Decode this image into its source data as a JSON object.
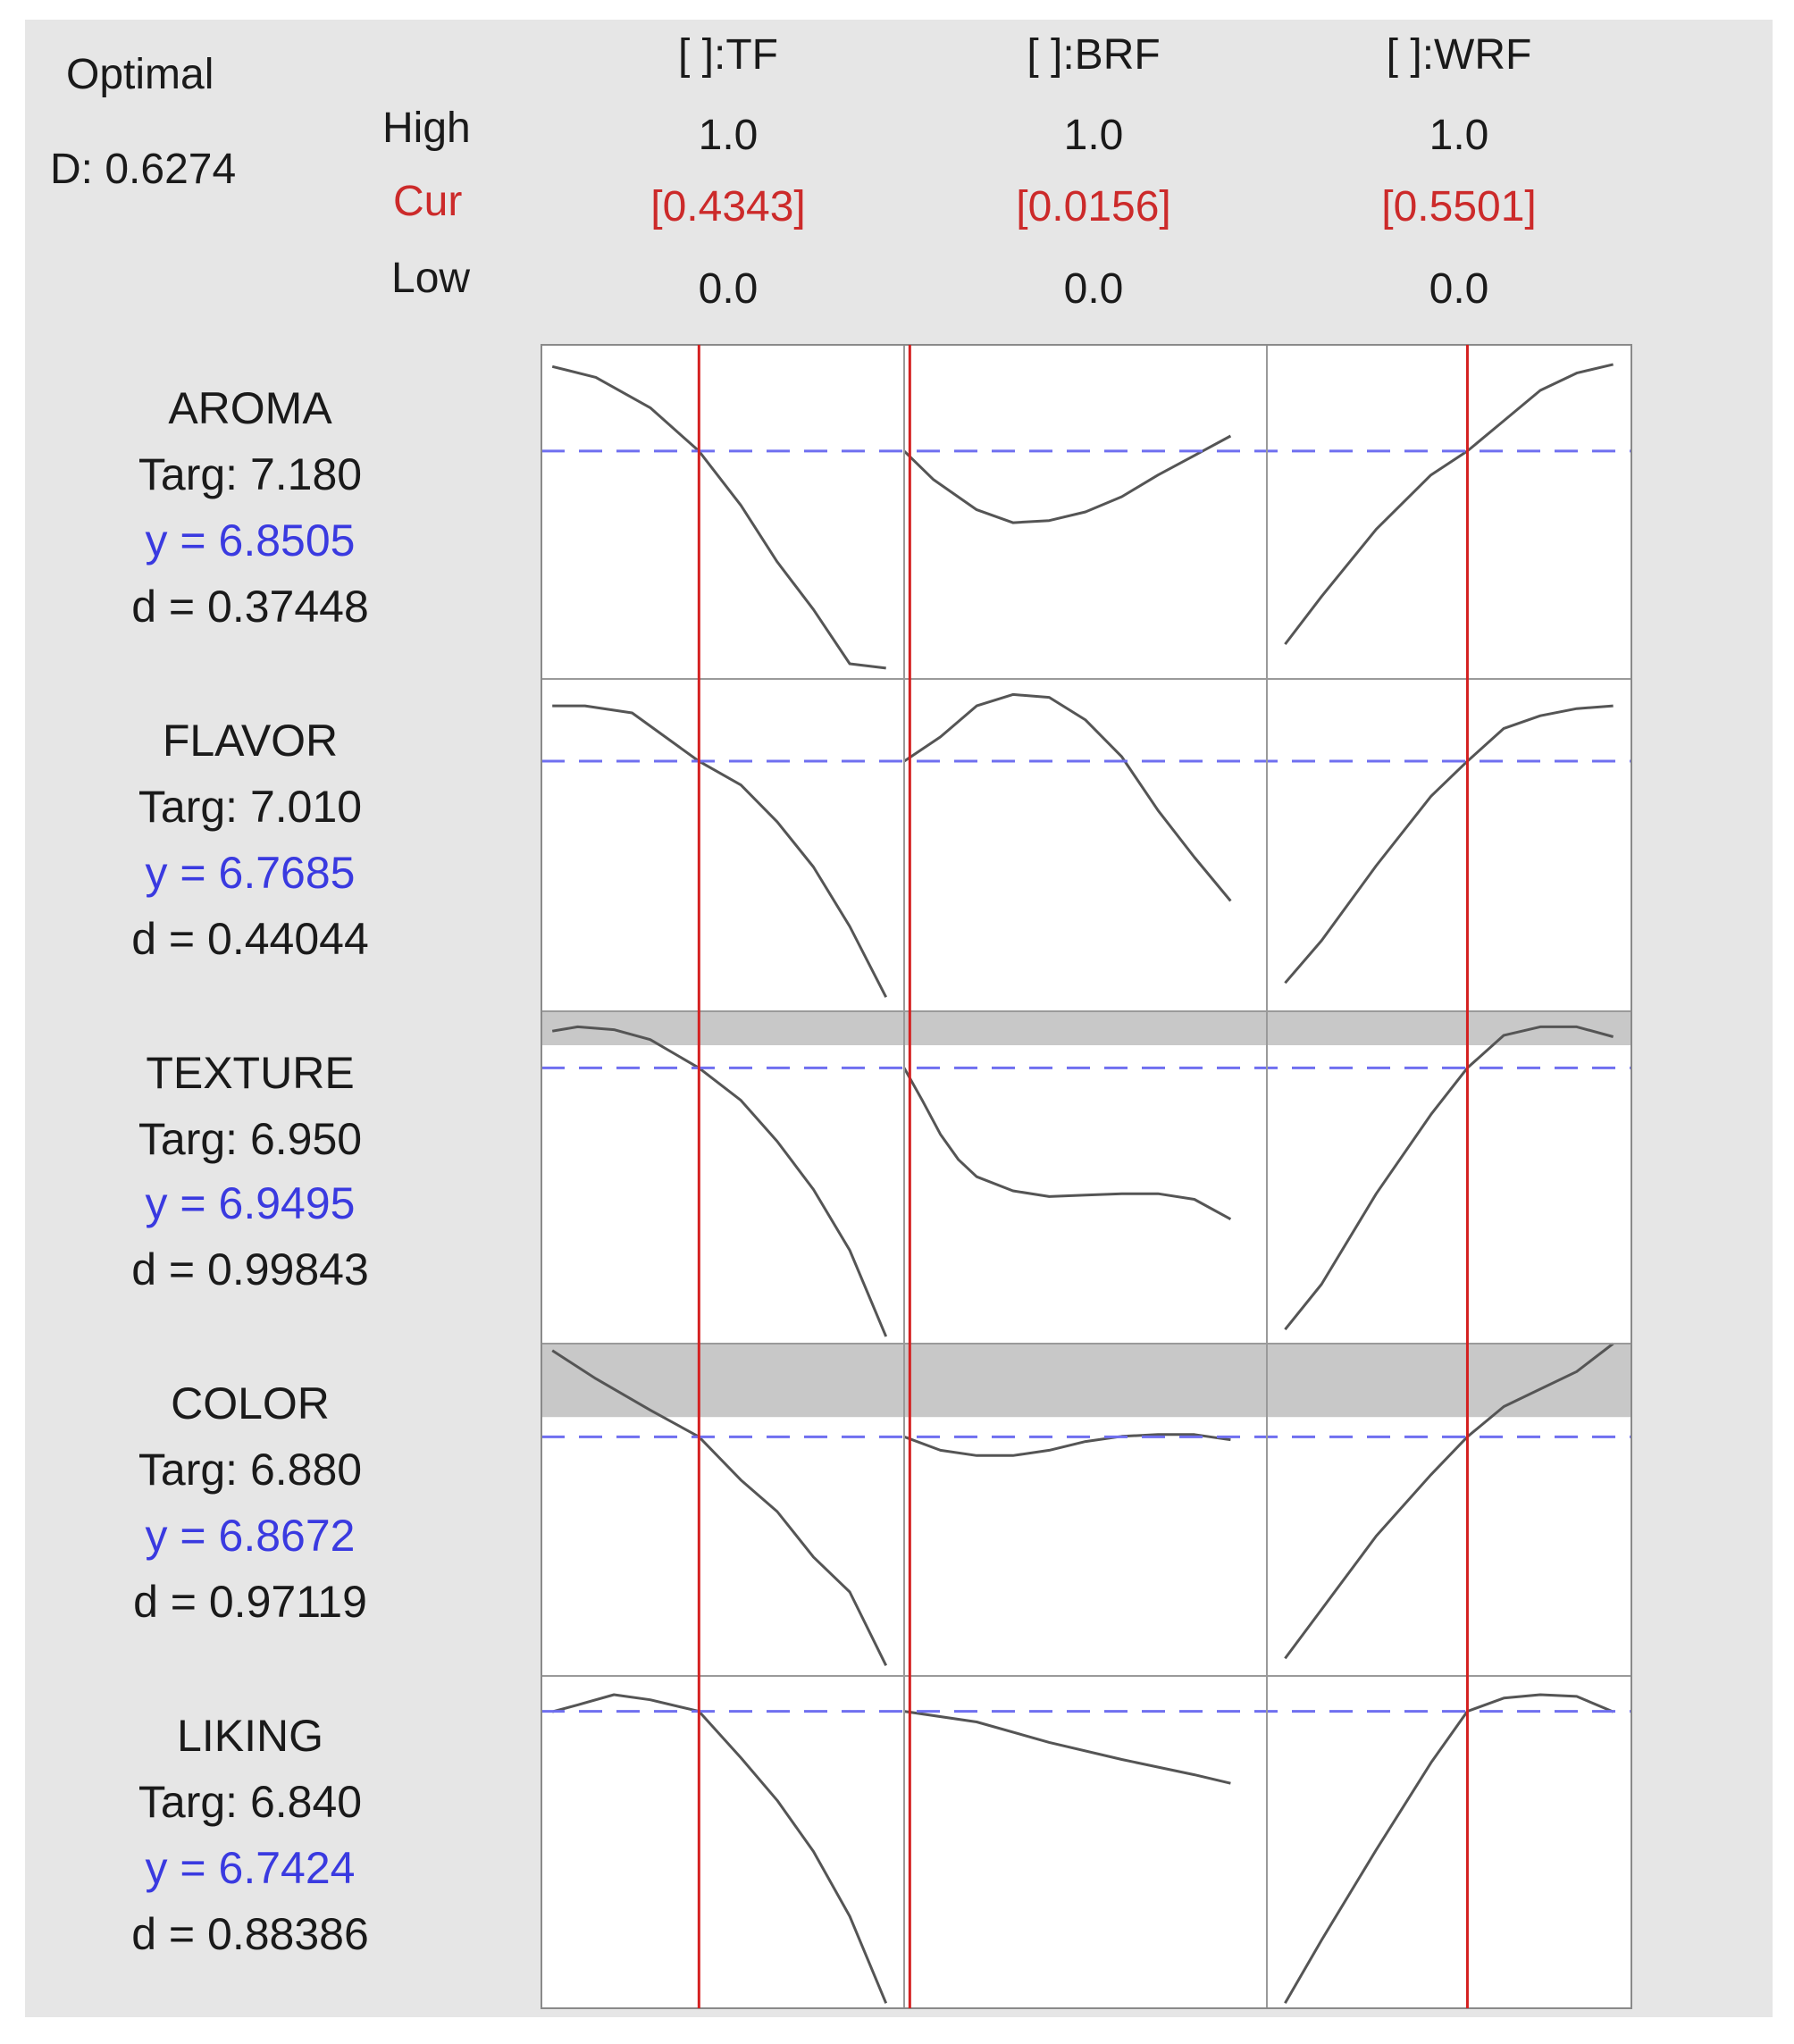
{
  "optimal": {
    "title": "Optimal",
    "D_label": "D: 0.6274"
  },
  "row_labels": {
    "high": "High",
    "cur": "Cur",
    "low": "Low"
  },
  "colors": {
    "cur": "#cc2a2a",
    "y": "#3a3ae0",
    "curve": "#555555",
    "target_line": "#6f6ff0",
    "current_line": "#d42020",
    "band": "#c8c8c8"
  },
  "chart_data": {
    "type": "line",
    "title": "",
    "factors": [
      {
        "name": "[ ]:TF",
        "high": "1.0",
        "cur": "[0.4343]",
        "low": "0.0",
        "cur_value": 0.4343
      },
      {
        "name": "[ ]:BRF",
        "high": "1.0",
        "cur": "[0.0156]",
        "low": "0.0",
        "cur_value": 0.0156
      },
      {
        "name": "[ ]:WRF",
        "high": "1.0",
        "cur": "[0.5501]",
        "low": "0.0",
        "cur_value": 0.5501
      }
    ],
    "responses": [
      {
        "name": "AROMA",
        "targ": "Targ: 7.180",
        "y": "y = 6.8505",
        "d": "d = 0.37448",
        "y_value": 6.8505,
        "ylim": [
          5.8,
          7.34
        ],
        "band": null,
        "curves": [
          [
            [
              0.03,
              7.24
            ],
            [
              0.15,
              7.19
            ],
            [
              0.3,
              7.05
            ],
            [
              0.4343,
              6.8505
            ],
            [
              0.55,
              6.6
            ],
            [
              0.65,
              6.34
            ],
            [
              0.75,
              6.12
            ],
            [
              0.85,
              5.87
            ],
            [
              0.95,
              5.85
            ]
          ],
          [
            [
              0.0,
              6.8505
            ],
            [
              0.08,
              6.72
            ],
            [
              0.2,
              6.58
            ],
            [
              0.3,
              6.52
            ],
            [
              0.4,
              6.53
            ],
            [
              0.5,
              6.57
            ],
            [
              0.6,
              6.64
            ],
            [
              0.7,
              6.74
            ],
            [
              0.8,
              6.83
            ],
            [
              0.9,
              6.92
            ]
          ],
          [
            [
              0.05,
              5.96
            ],
            [
              0.15,
              6.18
            ],
            [
              0.3,
              6.49
            ],
            [
              0.45,
              6.74
            ],
            [
              0.5501,
              6.8505
            ],
            [
              0.65,
              6.99
            ],
            [
              0.75,
              7.13
            ],
            [
              0.85,
              7.21
            ],
            [
              0.95,
              7.25
            ]
          ]
        ]
      },
      {
        "name": "FLAVOR",
        "targ": "Targ: 7.010",
        "y": "y = 6.7685",
        "d": "d = 0.44044",
        "y_value": 6.7685,
        "ylim": [
          5.0,
          7.35
        ],
        "band": null,
        "curves": [
          [
            [
              0.03,
              7.16
            ],
            [
              0.12,
              7.16
            ],
            [
              0.25,
              7.11
            ],
            [
              0.4343,
              6.7685
            ],
            [
              0.55,
              6.6
            ],
            [
              0.65,
              6.34
            ],
            [
              0.75,
              6.02
            ],
            [
              0.85,
              5.6
            ],
            [
              0.95,
              5.1
            ]
          ],
          [
            [
              0.0,
              6.7685
            ],
            [
              0.1,
              6.94
            ],
            [
              0.2,
              7.16
            ],
            [
              0.3,
              7.24
            ],
            [
              0.4,
              7.22
            ],
            [
              0.5,
              7.06
            ],
            [
              0.6,
              6.8
            ],
            [
              0.7,
              6.42
            ],
            [
              0.8,
              6.09
            ],
            [
              0.9,
              5.78
            ]
          ],
          [
            [
              0.05,
              5.2
            ],
            [
              0.15,
              5.5
            ],
            [
              0.3,
              6.03
            ],
            [
              0.45,
              6.52
            ],
            [
              0.5501,
              6.7685
            ],
            [
              0.65,
              7.0
            ],
            [
              0.75,
              7.09
            ],
            [
              0.85,
              7.14
            ],
            [
              0.95,
              7.16
            ]
          ]
        ]
      },
      {
        "name": "TEXTURE",
        "targ": "Targ: 6.950",
        "y": "y = 6.9495",
        "d": "d = 0.99843",
        "y_value": 6.9495,
        "ylim": [
          5.0,
          7.35
        ],
        "band": [
          7.11,
          7.35
        ],
        "curves": [
          [
            [
              0.03,
              7.21
            ],
            [
              0.1,
              7.24
            ],
            [
              0.2,
              7.22
            ],
            [
              0.3,
              7.15
            ],
            [
              0.4343,
              6.9495
            ],
            [
              0.55,
              6.72
            ],
            [
              0.65,
              6.43
            ],
            [
              0.75,
              6.09
            ],
            [
              0.85,
              5.66
            ],
            [
              0.95,
              5.05
            ]
          ],
          [
            [
              0.0,
              6.9495
            ],
            [
              0.05,
              6.72
            ],
            [
              0.1,
              6.48
            ],
            [
              0.15,
              6.3
            ],
            [
              0.2,
              6.18
            ],
            [
              0.3,
              6.08
            ],
            [
              0.4,
              6.04
            ],
            [
              0.5,
              6.05
            ],
            [
              0.6,
              6.06
            ],
            [
              0.7,
              6.06
            ],
            [
              0.8,
              6.02
            ],
            [
              0.9,
              5.88
            ]
          ],
          [
            [
              0.05,
              5.1
            ],
            [
              0.15,
              5.42
            ],
            [
              0.3,
              6.06
            ],
            [
              0.45,
              6.62
            ],
            [
              0.5501,
              6.9495
            ],
            [
              0.65,
              7.18
            ],
            [
              0.75,
              7.24
            ],
            [
              0.85,
              7.24
            ],
            [
              0.95,
              7.17
            ]
          ]
        ]
      },
      {
        "name": "COLOR",
        "targ": "Targ: 6.880",
        "y": "y = 6.8672",
        "d": "d = 0.97119",
        "y_value": 6.8672,
        "ylim": [
          5.5,
          7.4
        ],
        "band": [
          6.98,
          7.4
        ],
        "curves": [
          [
            [
              0.03,
              7.36
            ],
            [
              0.15,
              7.2
            ],
            [
              0.3,
              7.02
            ],
            [
              0.4343,
              6.8672
            ],
            [
              0.55,
              6.62
            ],
            [
              0.65,
              6.44
            ],
            [
              0.75,
              6.18
            ],
            [
              0.85,
              5.98
            ],
            [
              0.95,
              5.56
            ]
          ],
          [
            [
              0.0,
              6.8672
            ],
            [
              0.1,
              6.79
            ],
            [
              0.2,
              6.76
            ],
            [
              0.3,
              6.76
            ],
            [
              0.4,
              6.79
            ],
            [
              0.5,
              6.84
            ],
            [
              0.6,
              6.87
            ],
            [
              0.7,
              6.88
            ],
            [
              0.8,
              6.88
            ],
            [
              0.9,
              6.85
            ]
          ],
          [
            [
              0.05,
              5.6
            ],
            [
              0.15,
              5.88
            ],
            [
              0.3,
              6.3
            ],
            [
              0.45,
              6.65
            ],
            [
              0.5501,
              6.8672
            ],
            [
              0.65,
              7.04
            ],
            [
              0.75,
              7.14
            ],
            [
              0.85,
              7.24
            ],
            [
              0.95,
              7.4
            ]
          ]
        ]
      },
      {
        "name": "LIKING",
        "targ": "Targ: 6.840",
        "y": "y = 6.7424",
        "d": "d = 0.88386",
        "y_value": 6.7424,
        "ylim": [
          5.0,
          6.95
        ],
        "band": null,
        "curves": [
          [
            [
              0.03,
              6.74
            ],
            [
              0.1,
              6.78
            ],
            [
              0.2,
              6.84
            ],
            [
              0.3,
              6.81
            ],
            [
              0.4343,
              6.7424
            ],
            [
              0.55,
              6.47
            ],
            [
              0.65,
              6.22
            ],
            [
              0.75,
              5.92
            ],
            [
              0.85,
              5.54
            ],
            [
              0.95,
              5.03
            ]
          ],
          [
            [
              0.0,
              6.7424
            ],
            [
              0.2,
              6.68
            ],
            [
              0.4,
              6.56
            ],
            [
              0.6,
              6.46
            ],
            [
              0.8,
              6.37
            ],
            [
              0.9,
              6.32
            ]
          ],
          [
            [
              0.05,
              5.03
            ],
            [
              0.15,
              5.4
            ],
            [
              0.3,
              5.93
            ],
            [
              0.45,
              6.44
            ],
            [
              0.5501,
              6.7424
            ],
            [
              0.65,
              6.82
            ],
            [
              0.75,
              6.84
            ],
            [
              0.85,
              6.83
            ],
            [
              0.95,
              6.74
            ]
          ]
        ]
      }
    ]
  }
}
